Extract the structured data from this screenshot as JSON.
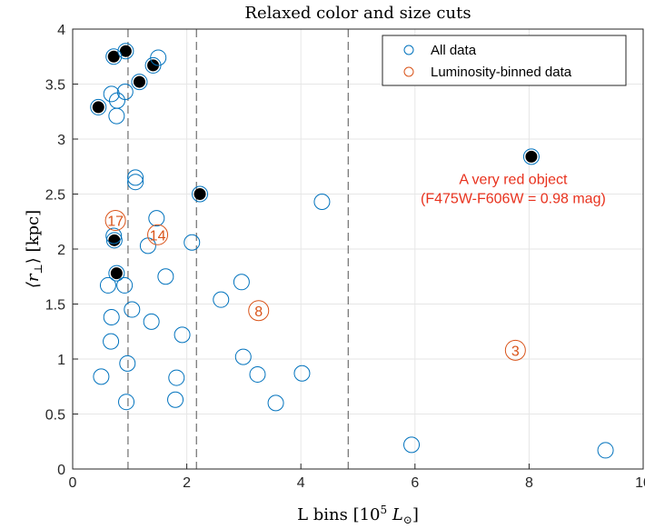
{
  "chart_data": {
    "type": "scatter",
    "title": "Relaxed color and size cuts",
    "xlabel": "L bins [10",
    "xlabel_exp": "5",
    "xlabel_tail": "L",
    "xlabel_sub": "⊙",
    "ylabel_pre": "⟨r",
    "ylabel_sub": "⊥",
    "ylabel_post": "⟩ [kpc]",
    "xlim": [
      0,
      10
    ],
    "ylim": [
      0,
      4
    ],
    "xticks": [
      "0",
      "2",
      "4",
      "6",
      "8",
      "10"
    ],
    "yticks": [
      "0",
      "0.5",
      "1",
      "1.5",
      "2",
      "2.5",
      "3",
      "3.5",
      "4"
    ],
    "grid": true,
    "legend_position": "top-right",
    "bin_edges": [
      0.97,
      2.17,
      4.83
    ],
    "series": [
      {
        "name": "All data",
        "color": "#0072BD",
        "points": [
          [
            0.45,
            3.29
          ],
          [
            0.72,
            3.75
          ],
          [
            0.93,
            3.8
          ],
          [
            1.5,
            3.74
          ],
          [
            1.41,
            3.67
          ],
          [
            1.17,
            3.52
          ],
          [
            0.68,
            3.41
          ],
          [
            0.78,
            3.35
          ],
          [
            0.92,
            3.43
          ],
          [
            0.77,
            3.21
          ],
          [
            1.1,
            2.65
          ],
          [
            1.1,
            2.61
          ],
          [
            2.23,
            2.5
          ],
          [
            4.37,
            2.43
          ],
          [
            1.47,
            2.28
          ],
          [
            0.72,
            2.12
          ],
          [
            0.73,
            2.08
          ],
          [
            1.32,
            2.03
          ],
          [
            2.09,
            2.06
          ],
          [
            0.77,
            1.78
          ],
          [
            1.63,
            1.75
          ],
          [
            0.62,
            1.67
          ],
          [
            0.91,
            1.67
          ],
          [
            2.96,
            1.7
          ],
          [
            2.6,
            1.54
          ],
          [
            1.04,
            1.45
          ],
          [
            0.68,
            1.38
          ],
          [
            1.38,
            1.34
          ],
          [
            1.92,
            1.22
          ],
          [
            0.67,
            1.16
          ],
          [
            2.99,
            1.02
          ],
          [
            0.96,
            0.96
          ],
          [
            1.82,
            0.83
          ],
          [
            0.5,
            0.84
          ],
          [
            3.24,
            0.86
          ],
          [
            4.02,
            0.87
          ],
          [
            0.94,
            0.61
          ],
          [
            1.8,
            0.63
          ],
          [
            3.56,
            0.6
          ],
          [
            5.94,
            0.22
          ],
          [
            9.34,
            0.17
          ],
          [
            8.04,
            2.84
          ]
        ]
      },
      {
        "name": "Luminosity-binned data",
        "color": "#D95319",
        "points": [
          {
            "x": 0.75,
            "y": 2.26,
            "label": "17"
          },
          {
            "x": 1.49,
            "y": 2.13,
            "label": "14"
          },
          {
            "x": 3.26,
            "y": 1.44,
            "label": "8"
          },
          {
            "x": 7.76,
            "y": 1.08,
            "label": "3"
          }
        ]
      }
    ],
    "highlighted_points": [
      [
        0.45,
        3.29
      ],
      [
        0.72,
        3.75
      ],
      [
        0.93,
        3.8
      ],
      [
        1.41,
        3.67
      ],
      [
        1.17,
        3.52
      ],
      [
        2.23,
        2.5
      ],
      [
        0.73,
        2.08
      ],
      [
        0.77,
        1.78
      ],
      [
        8.04,
        2.84
      ]
    ],
    "annotation": {
      "lines": [
        "A very red object",
        "(F475W-F606W = 0.98 mag)"
      ],
      "x": 8.04,
      "y": 2.5,
      "color": "#E8321E"
    }
  }
}
